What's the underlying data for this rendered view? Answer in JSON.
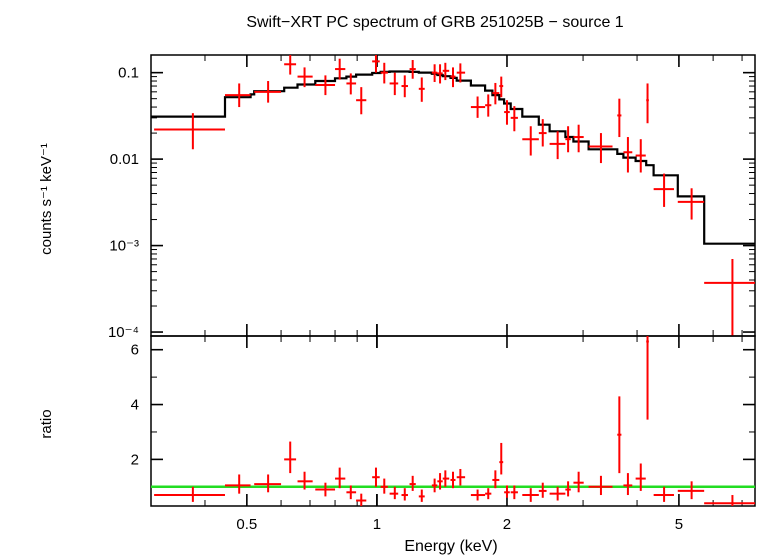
{
  "chart_data": [
    {
      "type": "scatter",
      "panel": "spectrum",
      "title": "Swift−XRT PC spectrum of GRB 251025B − source 1",
      "xlabel": "Energy (keV)",
      "ylabel": "counts s⁻¹ keV⁻¹",
      "xscale": "log",
      "yscale": "log",
      "xlim": [
        0.3,
        7.5
      ],
      "ylim": [
        9e-05,
        0.16
      ],
      "x_ticks": [
        0.5,
        1,
        2,
        5
      ],
      "x_tick_labels": [
        "0.5",
        "1",
        "2",
        "5"
      ],
      "y_ticks": [
        0.0001,
        0.001,
        0.01,
        0.1
      ],
      "y_tick_labels": [
        "10⁻⁴",
        "10⁻³",
        "0.01",
        "0.1"
      ],
      "series": [
        {
          "name": "data",
          "color": "#ff0000",
          "points": [
            {
              "x": 0.375,
              "xlo": 0.305,
              "xhi": 0.445,
              "y": 0.022,
              "ylo": 0.013,
              "yhi": 0.034
            },
            {
              "x": 0.48,
              "xlo": 0.445,
              "xhi": 0.51,
              "y": 0.055,
              "ylo": 0.04,
              "yhi": 0.075
            },
            {
              "x": 0.56,
              "xlo": 0.52,
              "xhi": 0.6,
              "y": 0.06,
              "ylo": 0.045,
              "yhi": 0.08
            },
            {
              "x": 0.63,
              "xlo": 0.61,
              "xhi": 0.65,
              "y": 0.125,
              "ylo": 0.095,
              "yhi": 0.165
            },
            {
              "x": 0.68,
              "xlo": 0.655,
              "xhi": 0.71,
              "y": 0.09,
              "ylo": 0.068,
              "yhi": 0.115
            },
            {
              "x": 0.76,
              "xlo": 0.72,
              "xhi": 0.8,
              "y": 0.072,
              "ylo": 0.055,
              "yhi": 0.093
            },
            {
              "x": 0.82,
              "xlo": 0.8,
              "xhi": 0.845,
              "y": 0.11,
              "ylo": 0.083,
              "yhi": 0.145
            },
            {
              "x": 0.87,
              "xlo": 0.85,
              "xhi": 0.895,
              "y": 0.075,
              "ylo": 0.056,
              "yhi": 0.098
            },
            {
              "x": 0.92,
              "xlo": 0.895,
              "xhi": 0.945,
              "y": 0.048,
              "ylo": 0.033,
              "yhi": 0.068
            },
            {
              "x": 0.995,
              "xlo": 0.975,
              "xhi": 1.015,
              "y": 0.135,
              "ylo": 0.1,
              "yhi": 0.175
            },
            {
              "x": 1.04,
              "xlo": 1.02,
              "xhi": 1.06,
              "y": 0.1,
              "ylo": 0.075,
              "yhi": 0.13
            },
            {
              "x": 1.1,
              "xlo": 1.07,
              "xhi": 1.12,
              "y": 0.075,
              "ylo": 0.055,
              "yhi": 0.1
            },
            {
              "x": 1.16,
              "xlo": 1.14,
              "xhi": 1.18,
              "y": 0.07,
              "ylo": 0.052,
              "yhi": 0.093
            },
            {
              "x": 1.21,
              "xlo": 1.19,
              "xhi": 1.23,
              "y": 0.11,
              "ylo": 0.085,
              "yhi": 0.14
            },
            {
              "x": 1.27,
              "xlo": 1.25,
              "xhi": 1.29,
              "y": 0.065,
              "ylo": 0.046,
              "yhi": 0.088
            },
            {
              "x": 1.36,
              "xlo": 1.34,
              "xhi": 1.38,
              "y": 0.1,
              "ylo": 0.078,
              "yhi": 0.125
            },
            {
              "x": 1.4,
              "xlo": 1.38,
              "xhi": 1.42,
              "y": 0.098,
              "ylo": 0.075,
              "yhi": 0.125
            },
            {
              "x": 1.44,
              "xlo": 1.42,
              "xhi": 1.47,
              "y": 0.105,
              "ylo": 0.082,
              "yhi": 0.13
            },
            {
              "x": 1.5,
              "xlo": 1.48,
              "xhi": 1.52,
              "y": 0.09,
              "ylo": 0.068,
              "yhi": 0.115
            },
            {
              "x": 1.56,
              "xlo": 1.53,
              "xhi": 1.6,
              "y": 0.1,
              "ylo": 0.077,
              "yhi": 0.128
            },
            {
              "x": 1.71,
              "xlo": 1.65,
              "xhi": 1.78,
              "y": 0.04,
              "ylo": 0.03,
              "yhi": 0.053
            },
            {
              "x": 1.81,
              "xlo": 1.78,
              "xhi": 1.84,
              "y": 0.042,
              "ylo": 0.031,
              "yhi": 0.056
            },
            {
              "x": 1.88,
              "xlo": 1.85,
              "xhi": 1.92,
              "y": 0.058,
              "ylo": 0.043,
              "yhi": 0.076
            },
            {
              "x": 1.94,
              "xlo": 1.92,
              "xhi": 1.96,
              "y": 0.07,
              "ylo": 0.052,
              "yhi": 0.09
            },
            {
              "x": 2.0,
              "xlo": 1.97,
              "xhi": 2.03,
              "y": 0.035,
              "ylo": 0.025,
              "yhi": 0.048
            },
            {
              "x": 2.08,
              "xlo": 2.04,
              "xhi": 2.12,
              "y": 0.03,
              "ylo": 0.021,
              "yhi": 0.041
            },
            {
              "x": 2.27,
              "xlo": 2.17,
              "xhi": 2.37,
              "y": 0.017,
              "ylo": 0.011,
              "yhi": 0.024
            },
            {
              "x": 2.42,
              "xlo": 2.37,
              "xhi": 2.47,
              "y": 0.02,
              "ylo": 0.014,
              "yhi": 0.029
            },
            {
              "x": 2.62,
              "xlo": 2.51,
              "xhi": 2.73,
              "y": 0.015,
              "ylo": 0.01,
              "yhi": 0.021
            },
            {
              "x": 2.77,
              "xlo": 2.73,
              "xhi": 2.81,
              "y": 0.017,
              "ylo": 0.012,
              "yhi": 0.024
            },
            {
              "x": 2.93,
              "xlo": 2.85,
              "xhi": 3.01,
              "y": 0.018,
              "ylo": 0.012,
              "yhi": 0.025
            },
            {
              "x": 3.3,
              "xlo": 3.09,
              "xhi": 3.51,
              "y": 0.014,
              "ylo": 0.009,
              "yhi": 0.02
            },
            {
              "x": 3.64,
              "xlo": 3.6,
              "xhi": 3.68,
              "y": 0.032,
              "ylo": 0.018,
              "yhi": 0.05
            },
            {
              "x": 3.81,
              "xlo": 3.72,
              "xhi": 3.9,
              "y": 0.012,
              "ylo": 0.007,
              "yhi": 0.018
            },
            {
              "x": 4.08,
              "xlo": 3.97,
              "xhi": 4.19,
              "y": 0.011,
              "ylo": 0.007,
              "yhi": 0.017
            },
            {
              "x": 4.23,
              "xlo": 4.2,
              "xhi": 4.26,
              "y": 0.048,
              "ylo": 0.026,
              "yhi": 0.075
            },
            {
              "x": 4.62,
              "xlo": 4.37,
              "xhi": 4.87,
              "y": 0.0045,
              "ylo": 0.0028,
              "yhi": 0.0068
            },
            {
              "x": 5.35,
              "xlo": 4.97,
              "xhi": 5.72,
              "y": 0.0032,
              "ylo": 0.002,
              "yhi": 0.0046
            },
            {
              "x": 6.65,
              "xlo": 5.72,
              "xhi": 7.55,
              "y": 0.00037,
              "ylo": 9e-05,
              "yhi": 0.0007
            }
          ]
        },
        {
          "name": "model",
          "color": "#000000",
          "style": "step",
          "edges": [
            0.3,
            0.445,
            0.51,
            0.52,
            0.61,
            0.655,
            0.72,
            0.8,
            0.85,
            0.895,
            0.975,
            1.02,
            1.07,
            1.14,
            1.19,
            1.25,
            1.34,
            1.38,
            1.42,
            1.48,
            1.53,
            1.65,
            1.78,
            1.85,
            1.92,
            1.97,
            2.04,
            2.17,
            2.37,
            2.51,
            2.73,
            2.85,
            3.09,
            3.6,
            3.72,
            3.97,
            4.2,
            4.37,
            4.97,
            5.72,
            7.55
          ],
          "values": [
            0.031,
            0.052,
            0.056,
            0.061,
            0.067,
            0.073,
            0.08,
            0.086,
            0.09,
            0.095,
            0.099,
            0.102,
            0.103,
            0.103,
            0.102,
            0.1,
            0.097,
            0.094,
            0.091,
            0.087,
            0.081,
            0.071,
            0.062,
            0.055,
            0.049,
            0.044,
            0.038,
            0.031,
            0.025,
            0.021,
            0.018,
            0.016,
            0.013,
            0.0115,
            0.0104,
            0.0095,
            0.0085,
            0.0065,
            0.0037,
            0.00105
          ]
        }
      ]
    },
    {
      "type": "scatter",
      "panel": "ratio",
      "xlabel": "Energy (keV)",
      "ylabel": "ratio",
      "xscale": "log",
      "xlim": [
        0.3,
        7.5
      ],
      "ylim": [
        0.3,
        6.5
      ],
      "x_ticks": [
        0.5,
        1,
        2,
        5
      ],
      "x_tick_labels": [
        "0.5",
        "1",
        "2",
        "5"
      ],
      "y_ticks": [
        2,
        4,
        6
      ],
      "y_tick_labels": [
        "2",
        "4",
        "6"
      ],
      "reference_line": {
        "y": 1,
        "color": "#22dd22"
      },
      "series": [
        {
          "name": "ratio",
          "color": "#ff0000",
          "points": [
            {
              "x": 0.375,
              "xlo": 0.305,
              "xhi": 0.445,
              "y": 0.7,
              "ylo": 0.45,
              "yhi": 1.0
            },
            {
              "x": 0.48,
              "xlo": 0.445,
              "xhi": 0.51,
              "y": 1.05,
              "ylo": 0.75,
              "yhi": 1.45
            },
            {
              "x": 0.56,
              "xlo": 0.52,
              "xhi": 0.6,
              "y": 1.1,
              "ylo": 0.8,
              "yhi": 1.45
            },
            {
              "x": 0.63,
              "xlo": 0.61,
              "xhi": 0.65,
              "y": 2.0,
              "ylo": 1.5,
              "yhi": 2.65
            },
            {
              "x": 0.68,
              "xlo": 0.655,
              "xhi": 0.71,
              "y": 1.2,
              "ylo": 0.9,
              "yhi": 1.55
            },
            {
              "x": 0.76,
              "xlo": 0.72,
              "xhi": 0.8,
              "y": 0.9,
              "ylo": 0.65,
              "yhi": 1.15
            },
            {
              "x": 0.82,
              "xlo": 0.8,
              "xhi": 0.845,
              "y": 1.3,
              "ylo": 0.95,
              "yhi": 1.7
            },
            {
              "x": 0.87,
              "xlo": 0.85,
              "xhi": 0.895,
              "y": 0.8,
              "ylo": 0.55,
              "yhi": 1.05
            },
            {
              "x": 0.92,
              "xlo": 0.895,
              "xhi": 0.945,
              "y": 0.5,
              "ylo": 0.3,
              "yhi": 0.75
            },
            {
              "x": 0.995,
              "xlo": 0.975,
              "xhi": 1.015,
              "y": 1.35,
              "ylo": 1.0,
              "yhi": 1.7
            },
            {
              "x": 1.04,
              "xlo": 1.02,
              "xhi": 1.06,
              "y": 1.0,
              "ylo": 0.75,
              "yhi": 1.3
            },
            {
              "x": 1.1,
              "xlo": 1.07,
              "xhi": 1.12,
              "y": 0.75,
              "ylo": 0.55,
              "yhi": 1.0
            },
            {
              "x": 1.16,
              "xlo": 1.14,
              "xhi": 1.18,
              "y": 0.7,
              "ylo": 0.5,
              "yhi": 0.95
            },
            {
              "x": 1.21,
              "xlo": 1.19,
              "xhi": 1.23,
              "y": 1.1,
              "ylo": 0.85,
              "yhi": 1.4
            },
            {
              "x": 1.27,
              "xlo": 1.25,
              "xhi": 1.29,
              "y": 0.65,
              "ylo": 0.45,
              "yhi": 0.9
            },
            {
              "x": 1.36,
              "xlo": 1.34,
              "xhi": 1.38,
              "y": 1.05,
              "ylo": 0.8,
              "yhi": 1.3
            },
            {
              "x": 1.4,
              "xlo": 1.38,
              "xhi": 1.42,
              "y": 1.2,
              "ylo": 0.9,
              "yhi": 1.5
            },
            {
              "x": 1.44,
              "xlo": 1.42,
              "xhi": 1.47,
              "y": 1.3,
              "ylo": 1.0,
              "yhi": 1.6
            },
            {
              "x": 1.5,
              "xlo": 1.48,
              "xhi": 1.52,
              "y": 1.25,
              "ylo": 0.95,
              "yhi": 1.55
            },
            {
              "x": 1.56,
              "xlo": 1.53,
              "xhi": 1.6,
              "y": 1.35,
              "ylo": 1.05,
              "yhi": 1.65
            },
            {
              "x": 1.71,
              "xlo": 1.65,
              "xhi": 1.78,
              "y": 0.7,
              "ylo": 0.5,
              "yhi": 0.9
            },
            {
              "x": 1.81,
              "xlo": 1.78,
              "xhi": 1.84,
              "y": 0.75,
              "ylo": 0.55,
              "yhi": 0.95
            },
            {
              "x": 1.88,
              "xlo": 1.85,
              "xhi": 1.92,
              "y": 1.25,
              "ylo": 0.95,
              "yhi": 1.6
            },
            {
              "x": 1.94,
              "xlo": 1.92,
              "xhi": 1.96,
              "y": 1.9,
              "ylo": 1.45,
              "yhi": 2.6
            },
            {
              "x": 2.0,
              "xlo": 1.97,
              "xhi": 2.03,
              "y": 0.8,
              "ylo": 0.6,
              "yhi": 1.05
            },
            {
              "x": 2.08,
              "xlo": 2.04,
              "xhi": 2.12,
              "y": 0.8,
              "ylo": 0.55,
              "yhi": 1.05
            },
            {
              "x": 2.27,
              "xlo": 2.17,
              "xhi": 2.37,
              "y": 0.7,
              "ylo": 0.45,
              "yhi": 0.95
            },
            {
              "x": 2.42,
              "xlo": 2.37,
              "xhi": 2.47,
              "y": 0.85,
              "ylo": 0.6,
              "yhi": 1.15
            },
            {
              "x": 2.62,
              "xlo": 2.51,
              "xhi": 2.73,
              "y": 0.75,
              "ylo": 0.5,
              "yhi": 1.0
            },
            {
              "x": 2.77,
              "xlo": 2.73,
              "xhi": 2.81,
              "y": 0.9,
              "ylo": 0.65,
              "yhi": 1.2
            },
            {
              "x": 2.93,
              "xlo": 2.85,
              "xhi": 3.01,
              "y": 1.15,
              "ylo": 0.8,
              "yhi": 1.55
            },
            {
              "x": 3.3,
              "xlo": 3.09,
              "xhi": 3.51,
              "y": 1.0,
              "ylo": 0.7,
              "yhi": 1.4
            },
            {
              "x": 3.64,
              "xlo": 3.6,
              "xhi": 3.68,
              "y": 2.9,
              "ylo": 1.5,
              "yhi": 4.3
            },
            {
              "x": 3.81,
              "xlo": 3.72,
              "xhi": 3.9,
              "y": 1.05,
              "ylo": 0.7,
              "yhi": 1.5
            },
            {
              "x": 4.08,
              "xlo": 3.97,
              "xhi": 4.19,
              "y": 1.3,
              "ylo": 0.85,
              "yhi": 1.85
            },
            {
              "x": 4.23,
              "xlo": 4.2,
              "xhi": 4.26,
              "y": 6.3,
              "ylo": 3.45,
              "yhi": 6.5
            },
            {
              "x": 4.62,
              "xlo": 4.37,
              "xhi": 4.87,
              "y": 0.7,
              "ylo": 0.45,
              "yhi": 1.0
            },
            {
              "x": 5.35,
              "xlo": 4.97,
              "xhi": 5.72,
              "y": 0.85,
              "ylo": 0.55,
              "yhi": 1.2
            },
            {
              "x": 6.65,
              "xlo": 5.72,
              "xhi": 7.55,
              "y": 0.4,
              "ylo": 0.1,
              "yhi": 0.7
            }
          ]
        }
      ]
    }
  ]
}
